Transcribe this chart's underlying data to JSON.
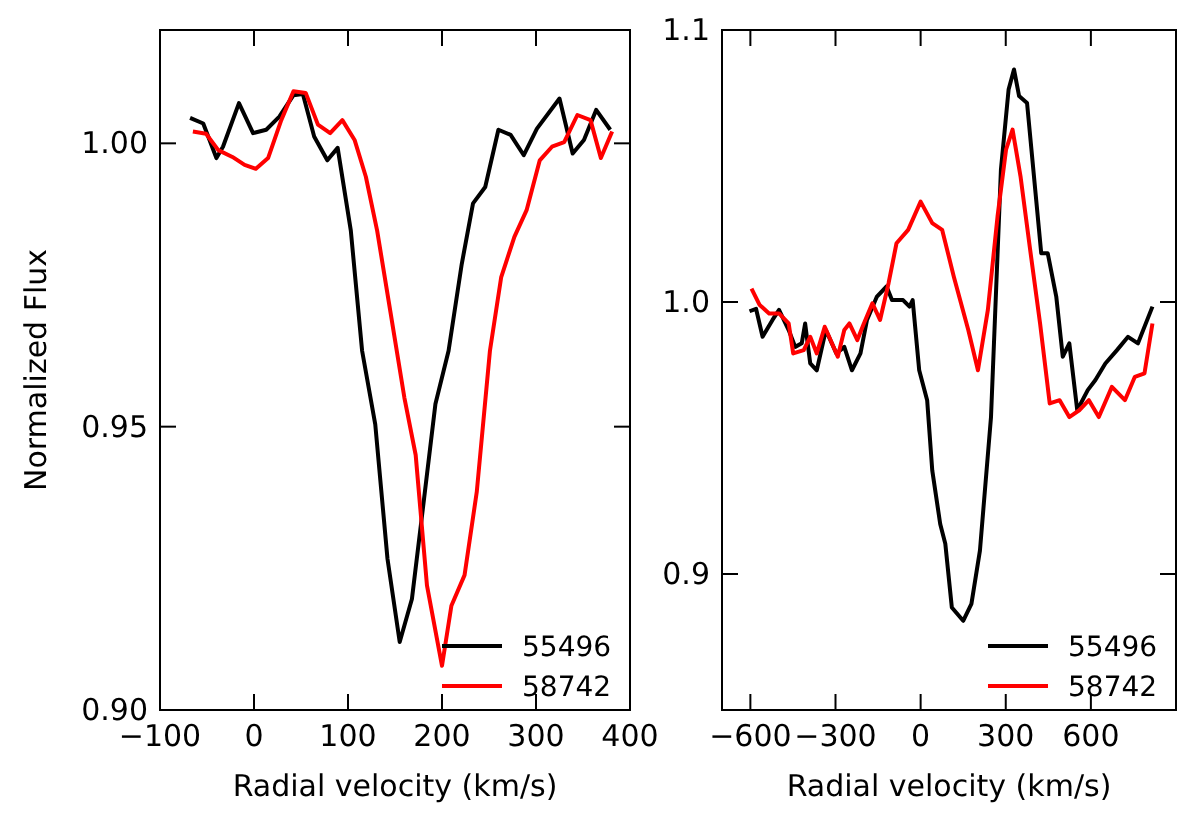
{
  "chart_data": [
    {
      "type": "line",
      "xlabel": "Radial velocity (km/s)",
      "ylabel": "Normalized Flux",
      "xlim": [
        -100,
        400
      ],
      "xticks": [
        -100,
        0,
        100,
        200,
        300,
        400
      ],
      "ylim": [
        0.9,
        1.02
      ],
      "yticks": [
        {
          "value": 0.9,
          "label": "0.90"
        },
        {
          "value": 0.95,
          "label": "0.95"
        },
        {
          "value": 1.0,
          "label": "1.00"
        }
      ],
      "legend": "bottom right",
      "series": [
        {
          "name": "55496",
          "color": "#000000",
          "x": [
            -68,
            -54,
            -40,
            -33,
            -16,
            -1,
            13,
            27,
            42,
            52,
            64,
            78,
            89,
            103,
            115,
            129,
            142,
            155,
            168,
            181,
            193,
            207,
            221,
            233,
            246,
            260,
            273,
            287,
            301,
            325,
            339,
            351,
            364,
            379
          ],
          "values": [
            1.0045,
            1.0035,
            0.9974,
            0.9994,
            1.0071,
            1.0018,
            1.0024,
            1.0047,
            1.0085,
            1.0087,
            1.0012,
            0.997,
            0.9992,
            0.9846,
            0.9634,
            0.9504,
            0.9267,
            0.912,
            0.9196,
            0.9374,
            0.954,
            0.9634,
            0.9787,
            0.9894,
            0.9923,
            1.0024,
            1.0015,
            0.9979,
            1.0026,
            1.0079,
            0.9982,
            1.0006,
            1.0059,
            1.0024
          ]
        },
        {
          "name": "58742",
          "color": "#ff0000",
          "x": [
            -65,
            -51,
            -38,
            -23,
            -10,
            2,
            15,
            29,
            42,
            55,
            68,
            81,
            94,
            107,
            119,
            131,
            145,
            160,
            172,
            184,
            200,
            210,
            224,
            237,
            251,
            263,
            277,
            290,
            304,
            317,
            330,
            344,
            358,
            369,
            381
          ],
          "values": [
            1.0021,
            1.0017,
            0.9988,
            0.9976,
            0.9962,
            0.9955,
            0.9974,
            1.0041,
            1.0092,
            1.0089,
            1.0033,
            1.0018,
            1.0041,
            1.0006,
            0.9941,
            0.9846,
            0.9704,
            0.9551,
            0.945,
            0.922,
            0.9078,
            0.9184,
            0.9238,
            0.9385,
            0.9634,
            0.9764,
            0.9835,
            0.9882,
            0.997,
            0.9994,
            1.0002,
            1.005,
            1.0041,
            0.9974,
            1.0021
          ]
        }
      ]
    },
    {
      "type": "line",
      "xlabel": "Radial velocity (km/s)",
      "xlim": [
        -700,
        900
      ],
      "xticks": [
        -600,
        -300,
        0,
        300,
        600
      ],
      "ylim": [
        0.85,
        1.1
      ],
      "yticks": [
        0.9,
        {
          "value": 1.0,
          "label": "1.0"
        },
        1.1
      ],
      "legend": "bottom right",
      "series": [
        {
          "name": "55496",
          "color": "#000000",
          "x": [
            -603,
            -580,
            -557,
            -522,
            -499,
            -465,
            -442,
            -419,
            -407,
            -389,
            -366,
            -334,
            -297,
            -269,
            -242,
            -212,
            -189,
            -154,
            -120,
            -101,
            -62,
            -39,
            -28,
            -5,
            23,
            41,
            69,
            87,
            110,
            150,
            179,
            209,
            248,
            283,
            310,
            329,
            347,
            375,
            425,
            448,
            478,
            501,
            524,
            552,
            589,
            616,
            651,
            692,
            731,
            766,
            817
          ],
          "values": [
            0.9966,
            0.9975,
            0.9872,
            0.9934,
            0.9971,
            0.9897,
            0.9835,
            0.9848,
            0.9921,
            0.9774,
            0.9749,
            0.9897,
            0.9811,
            0.9835,
            0.9749,
            0.9811,
            0.9934,
            1.002,
            1.0057,
            1.0007,
            1.0007,
            0.9983,
            1.0007,
            0.9749,
            0.9639,
            0.9381,
            0.9184,
            0.9111,
            0.8877,
            0.8828,
            0.889,
            0.9086,
            0.9577,
            1.0486,
            1.0781,
            1.0855,
            1.0757,
            1.0732,
            1.0179,
            1.0179,
            1.002,
            0.9799,
            0.9848,
            0.9602,
            0.9676,
            0.9713,
            0.9774,
            0.9823,
            0.9872,
            0.9848,
            0.9983
          ]
        },
        {
          "name": "58742",
          "color": "#ff0000",
          "x": [
            -596,
            -568,
            -534,
            -499,
            -465,
            -449,
            -412,
            -389,
            -366,
            -338,
            -292,
            -269,
            -251,
            -223,
            -200,
            -170,
            -143,
            -113,
            -85,
            -44,
            0,
            41,
            76,
            117,
            168,
            202,
            237,
            271,
            301,
            324,
            352,
            386,
            421,
            455,
            490,
            524,
            559,
            593,
            628,
            674,
            720,
            755,
            789,
            817
          ],
          "values": [
            1.0049,
            0.999,
            0.9958,
            0.9958,
            0.9921,
            0.9811,
            0.9823,
            0.9872,
            0.9811,
            0.9909,
            0.9799,
            0.9897,
            0.9921,
            0.986,
            0.9921,
            0.9995,
            0.9934,
            1.0069,
            1.0216,
            1.0265,
            1.0369,
            1.029,
            1.0265,
            1.0093,
            0.9897,
            0.9749,
            0.9971,
            1.0314,
            1.056,
            1.0634,
            1.0462,
            1.0192,
            0.9921,
            0.9627,
            0.9639,
            0.9577,
            0.9602,
            0.9639,
            0.9577,
            0.9688,
            0.9639,
            0.9725,
            0.9738,
            0.9921
          ]
        }
      ]
    }
  ]
}
